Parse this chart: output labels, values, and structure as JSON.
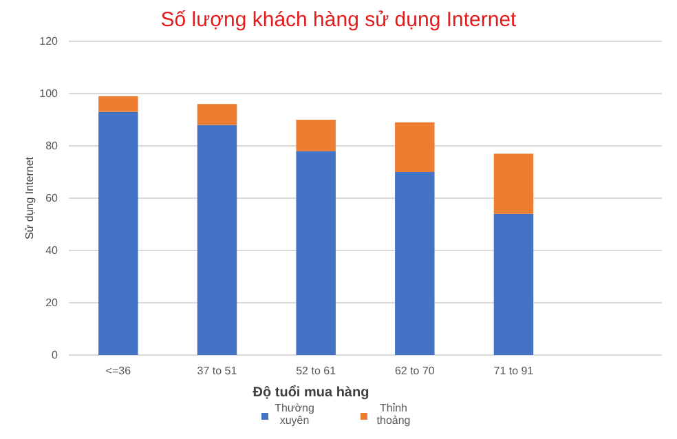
{
  "chart_data": {
    "type": "bar",
    "title": "Số lượng khách hàng sử dụng Internet",
    "xlabel": "Độ tuổi mua hàng",
    "ylabel": "Sử dụng Internet",
    "categories": [
      "<=36",
      "37 to 51",
      "52 to 61",
      "62 to 70",
      "71 to 91",
      null
    ],
    "series": [
      {
        "name": "Thường xuyên",
        "color": "#4472c4",
        "values": [
          93,
          88,
          78,
          70,
          54,
          null
        ]
      },
      {
        "name": "Thỉnh thoảng",
        "color": "#ed7d31",
        "values": [
          6,
          8,
          12,
          19,
          23,
          null
        ]
      }
    ],
    "stacked": true,
    "ylim": [
      0,
      120
    ],
    "yticks": [
      0,
      20,
      40,
      60,
      80,
      100,
      120
    ],
    "grid": "y",
    "legend": "bottom"
  }
}
